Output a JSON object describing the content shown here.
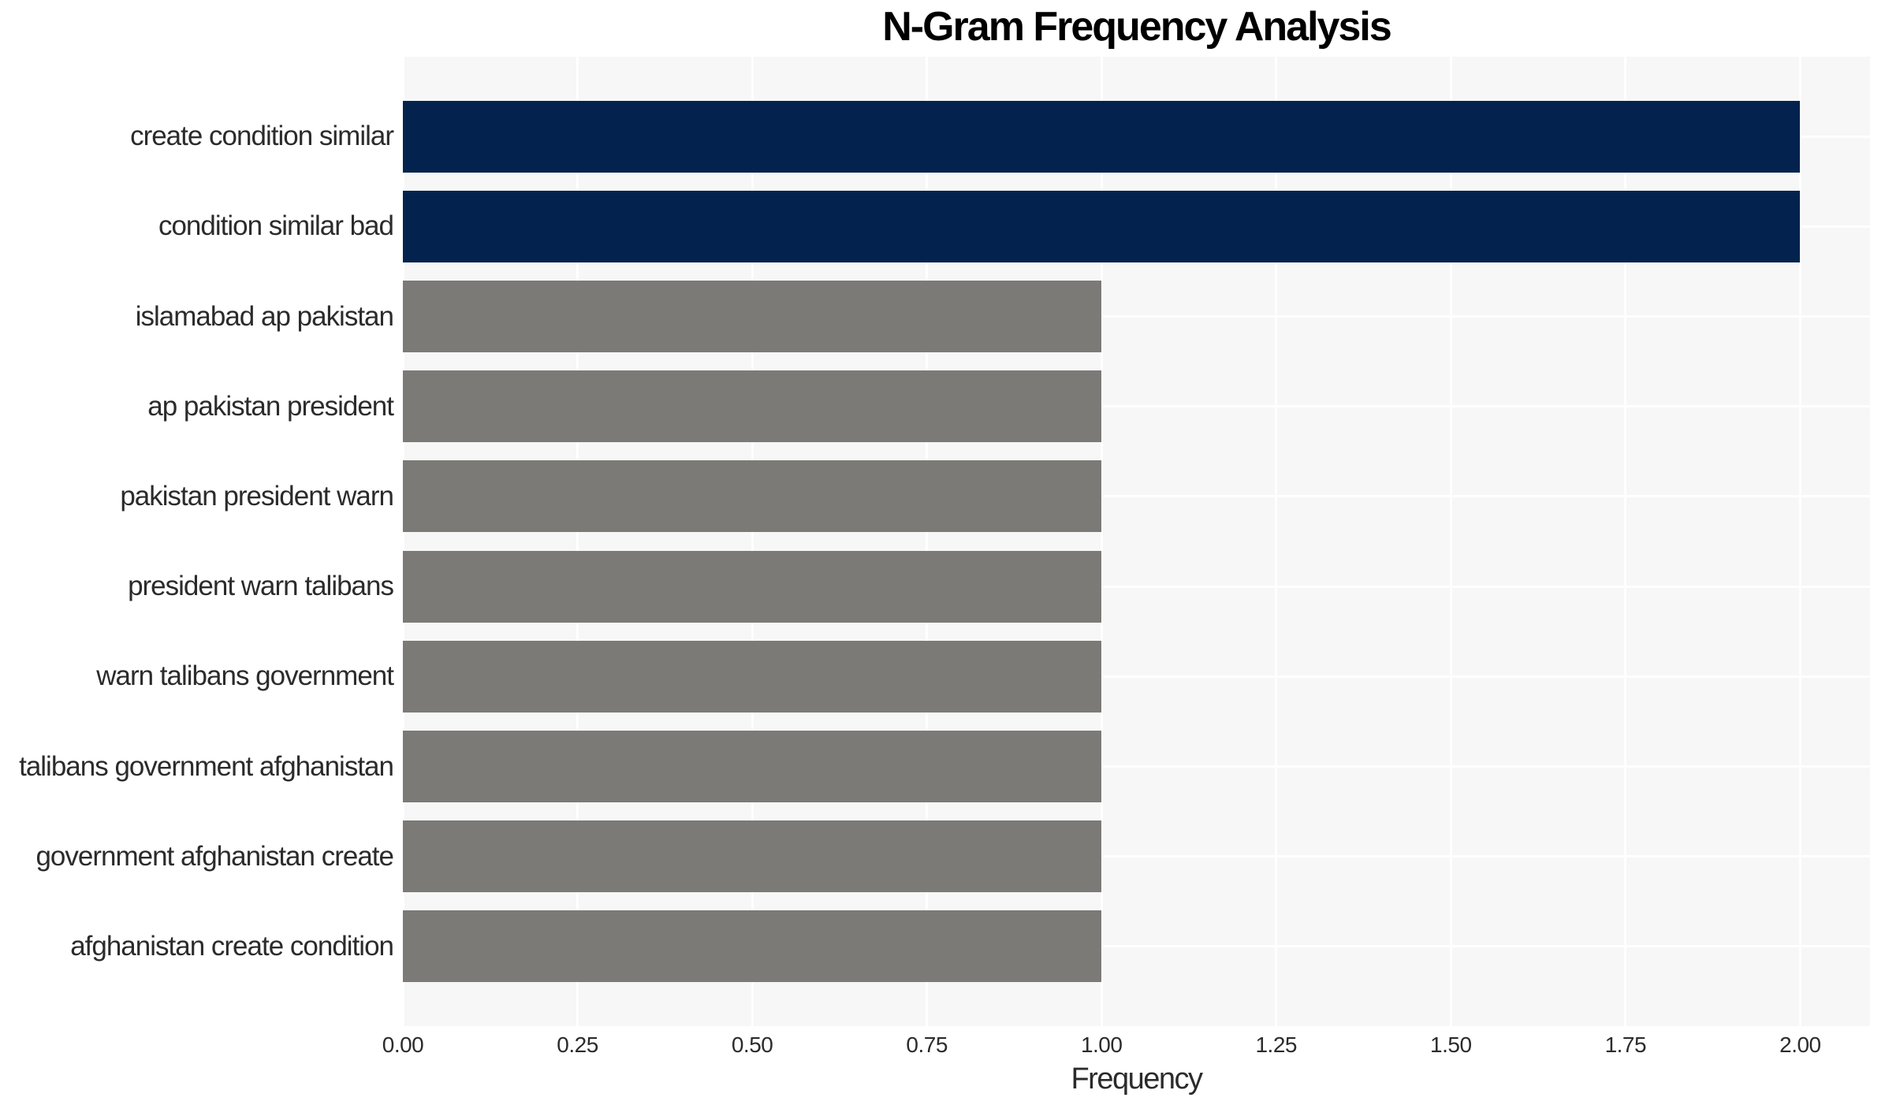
{
  "chart_data": {
    "type": "bar",
    "orientation": "horizontal",
    "title": "N-Gram Frequency Analysis",
    "xlabel": "Frequency",
    "ylabel": "",
    "categories": [
      "create condition similar",
      "condition similar bad",
      "islamabad ap pakistan",
      "ap pakistan president",
      "pakistan president warn",
      "president warn talibans",
      "warn talibans government",
      "talibans government afghanistan",
      "government afghanistan create",
      "afghanistan create condition"
    ],
    "values": [
      2,
      2,
      1,
      1,
      1,
      1,
      1,
      1,
      1,
      1
    ],
    "bar_colors": [
      "#03234e",
      "#03234e",
      "#7b7a76",
      "#7b7a76",
      "#7b7a76",
      "#7b7a76",
      "#7b7a76",
      "#7b7a76",
      "#7b7a76",
      "#7b7a76"
    ],
    "highlight_color": "#03234e",
    "base_color": "#7b7a76",
    "xlim": [
      0,
      2.1
    ],
    "xticks": [
      0,
      0.25,
      0.5,
      0.75,
      1.0,
      1.25,
      1.5,
      1.75,
      2.0
    ],
    "xtick_labels": [
      "0.00",
      "0.25",
      "0.50",
      "0.75",
      "1.00",
      "1.25",
      "1.50",
      "1.75",
      "2.00"
    ],
    "grid": true,
    "gridline_color": "#ffffff",
    "panel_background": "#f7f7f7",
    "legend": false
  }
}
